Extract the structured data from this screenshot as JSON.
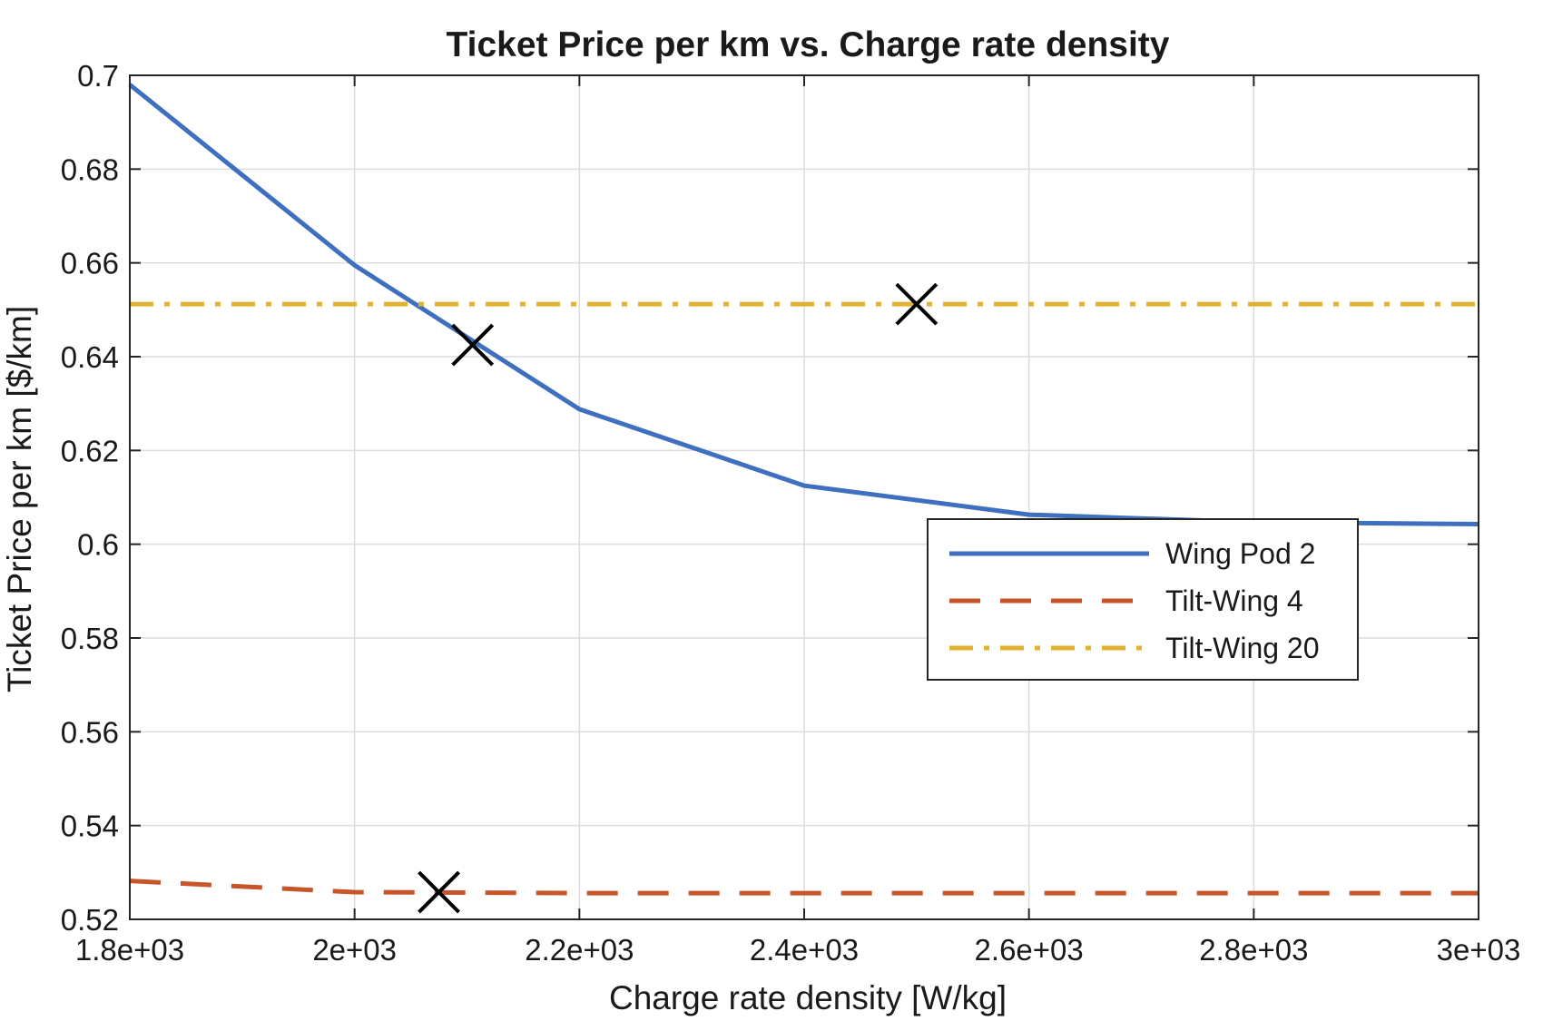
{
  "chart_data": {
    "type": "line",
    "title": "Ticket Price per km vs. Charge rate density",
    "xlabel": "Charge rate density [W/kg]",
    "ylabel": "Ticket Price per km [$/km]",
    "xlim": [
      1800,
      3000
    ],
    "ylim": [
      0.52,
      0.7
    ],
    "x_ticks": [
      1800,
      2000,
      2200,
      2400,
      2600,
      2800,
      3000
    ],
    "x_tick_labels": [
      "1.8e+03",
      "2e+03",
      "2.2e+03",
      "2.4e+03",
      "2.6e+03",
      "2.8e+03",
      "3e+03"
    ],
    "y_ticks": [
      0.52,
      0.54,
      0.56,
      0.58,
      0.6,
      0.62,
      0.64,
      0.66,
      0.68,
      0.7
    ],
    "y_tick_labels": [
      "0.52",
      "0.54",
      "0.56",
      "0.58",
      "0.6",
      "0.62",
      "0.64",
      "0.66",
      "0.68",
      "0.7"
    ],
    "grid": true,
    "legend_position": "center-right",
    "series": [
      {
        "name": "Wing Pod 2",
        "color": "#3f6fbf",
        "style": "solid",
        "x": [
          1800,
          2000,
          2200,
          2400,
          2600,
          2800,
          3000
        ],
        "y": [
          0.698,
          0.6595,
          0.6288,
          0.6125,
          0.6063,
          0.6047,
          0.6043
        ]
      },
      {
        "name": "Tilt-Wing 4",
        "color": "#c8552a",
        "style": "dashed",
        "x": [
          1800,
          2000,
          2200,
          2400,
          2600,
          2800,
          3000
        ],
        "y": [
          0.5282,
          0.5258,
          0.5256,
          0.5256,
          0.5256,
          0.5256,
          0.5256
        ]
      },
      {
        "name": "Tilt-Wing 20",
        "color": "#e0b133",
        "style": "dashdot",
        "x": [
          1800,
          3000
        ],
        "y": [
          0.6512,
          0.6512
        ]
      }
    ],
    "markers": [
      {
        "series": "Wing Pod 2",
        "x": 2105,
        "y": 0.6425,
        "symbol": "x"
      },
      {
        "series": "Tilt-Wing 4",
        "x": 2075,
        "y": 0.5258,
        "symbol": "x"
      },
      {
        "series": "Tilt-Wing 20",
        "x": 2500,
        "y": 0.6512,
        "symbol": "x"
      }
    ]
  }
}
